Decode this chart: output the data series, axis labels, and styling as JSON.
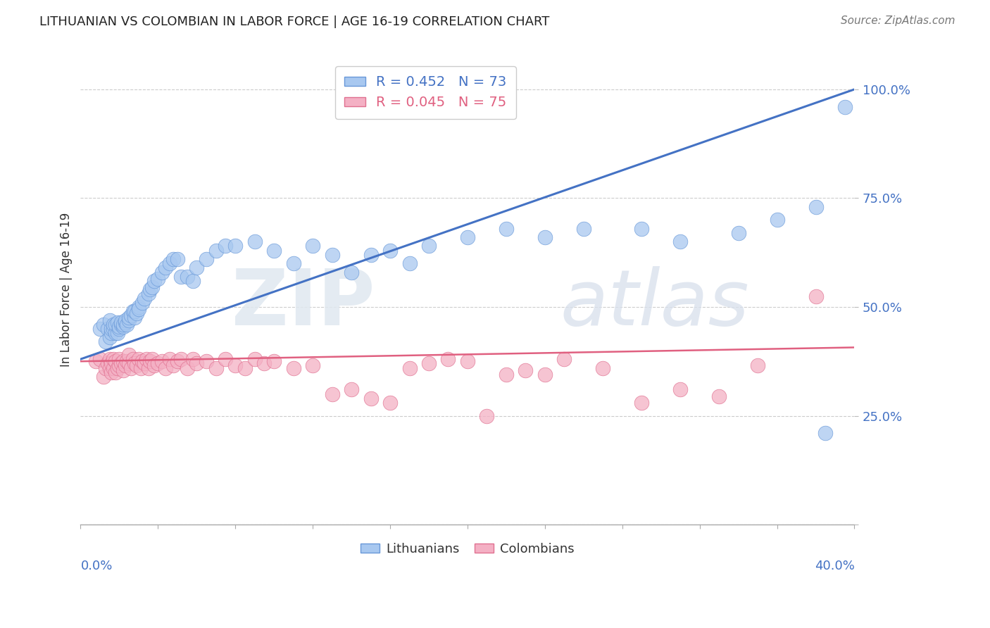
{
  "title": "LITHUANIAN VS COLOMBIAN IN LABOR FORCE | AGE 16-19 CORRELATION CHART",
  "source": "Source: ZipAtlas.com",
  "ylabel": "In Labor Force | Age 16-19",
  "y_ticks": [
    0.0,
    0.25,
    0.5,
    0.75,
    1.0
  ],
  "y_tick_labels": [
    "",
    "25.0%",
    "50.0%",
    "75.0%",
    "100.0%"
  ],
  "x_min": 0.0,
  "x_max": 0.4,
  "y_min": 0.0,
  "y_max": 1.08,
  "blue_R": 0.452,
  "blue_N": 73,
  "pink_R": 0.045,
  "pink_N": 75,
  "blue_color": "#A8C8F0",
  "pink_color": "#F4B0C4",
  "blue_edge_color": "#6898D8",
  "pink_edge_color": "#E07090",
  "blue_line_color": "#4472C4",
  "pink_line_color": "#E06080",
  "legend_label_blue": "Lithuanians",
  "legend_label_pink": "Colombians",
  "background_color": "#FFFFFF",
  "grid_color": "#CCCCCC",
  "blue_intercept": 0.38,
  "blue_slope": 1.55,
  "pink_intercept": 0.375,
  "pink_slope": 0.08,
  "blue_x": [
    0.01,
    0.012,
    0.013,
    0.014,
    0.015,
    0.015,
    0.016,
    0.016,
    0.017,
    0.017,
    0.018,
    0.018,
    0.019,
    0.019,
    0.02,
    0.02,
    0.021,
    0.021,
    0.022,
    0.022,
    0.023,
    0.023,
    0.024,
    0.025,
    0.025,
    0.026,
    0.027,
    0.028,
    0.028,
    0.029,
    0.03,
    0.03,
    0.032,
    0.033,
    0.035,
    0.036,
    0.037,
    0.038,
    0.04,
    0.042,
    0.044,
    0.046,
    0.048,
    0.05,
    0.052,
    0.055,
    0.058,
    0.06,
    0.065,
    0.07,
    0.075,
    0.08,
    0.09,
    0.1,
    0.11,
    0.12,
    0.13,
    0.14,
    0.15,
    0.16,
    0.17,
    0.18,
    0.2,
    0.22,
    0.24,
    0.26,
    0.29,
    0.31,
    0.34,
    0.36,
    0.38,
    0.385,
    0.395
  ],
  "blue_y": [
    0.45,
    0.46,
    0.42,
    0.45,
    0.43,
    0.47,
    0.44,
    0.45,
    0.45,
    0.46,
    0.44,
    0.46,
    0.44,
    0.465,
    0.45,
    0.455,
    0.46,
    0.465,
    0.455,
    0.46,
    0.465,
    0.47,
    0.46,
    0.47,
    0.475,
    0.48,
    0.49,
    0.475,
    0.49,
    0.485,
    0.5,
    0.495,
    0.51,
    0.52,
    0.53,
    0.54,
    0.545,
    0.56,
    0.565,
    0.58,
    0.59,
    0.6,
    0.61,
    0.61,
    0.57,
    0.57,
    0.56,
    0.59,
    0.61,
    0.63,
    0.64,
    0.64,
    0.65,
    0.63,
    0.6,
    0.64,
    0.62,
    0.58,
    0.62,
    0.63,
    0.6,
    0.64,
    0.66,
    0.68,
    0.66,
    0.68,
    0.68,
    0.65,
    0.67,
    0.7,
    0.73,
    0.21,
    0.96
  ],
  "pink_x": [
    0.008,
    0.01,
    0.012,
    0.013,
    0.014,
    0.015,
    0.015,
    0.016,
    0.016,
    0.017,
    0.017,
    0.018,
    0.018,
    0.019,
    0.02,
    0.02,
    0.021,
    0.022,
    0.022,
    0.023,
    0.024,
    0.025,
    0.025,
    0.026,
    0.027,
    0.028,
    0.029,
    0.03,
    0.031,
    0.032,
    0.033,
    0.034,
    0.035,
    0.036,
    0.037,
    0.038,
    0.04,
    0.042,
    0.044,
    0.046,
    0.048,
    0.05,
    0.052,
    0.055,
    0.058,
    0.06,
    0.065,
    0.07,
    0.075,
    0.08,
    0.085,
    0.09,
    0.095,
    0.1,
    0.11,
    0.12,
    0.13,
    0.14,
    0.15,
    0.16,
    0.17,
    0.18,
    0.19,
    0.2,
    0.21,
    0.22,
    0.23,
    0.24,
    0.25,
    0.27,
    0.29,
    0.31,
    0.33,
    0.35,
    0.38
  ],
  "pink_y": [
    0.375,
    0.38,
    0.34,
    0.36,
    0.37,
    0.36,
    0.38,
    0.35,
    0.37,
    0.36,
    0.38,
    0.35,
    0.375,
    0.36,
    0.365,
    0.38,
    0.37,
    0.355,
    0.375,
    0.365,
    0.375,
    0.37,
    0.39,
    0.36,
    0.38,
    0.37,
    0.365,
    0.38,
    0.36,
    0.375,
    0.37,
    0.38,
    0.36,
    0.375,
    0.38,
    0.365,
    0.37,
    0.375,
    0.36,
    0.38,
    0.365,
    0.375,
    0.38,
    0.36,
    0.38,
    0.37,
    0.375,
    0.36,
    0.38,
    0.365,
    0.36,
    0.38,
    0.37,
    0.375,
    0.36,
    0.365,
    0.3,
    0.31,
    0.29,
    0.28,
    0.36,
    0.37,
    0.38,
    0.375,
    0.25,
    0.345,
    0.355,
    0.345,
    0.38,
    0.36,
    0.28,
    0.31,
    0.295,
    0.365,
    0.525
  ]
}
